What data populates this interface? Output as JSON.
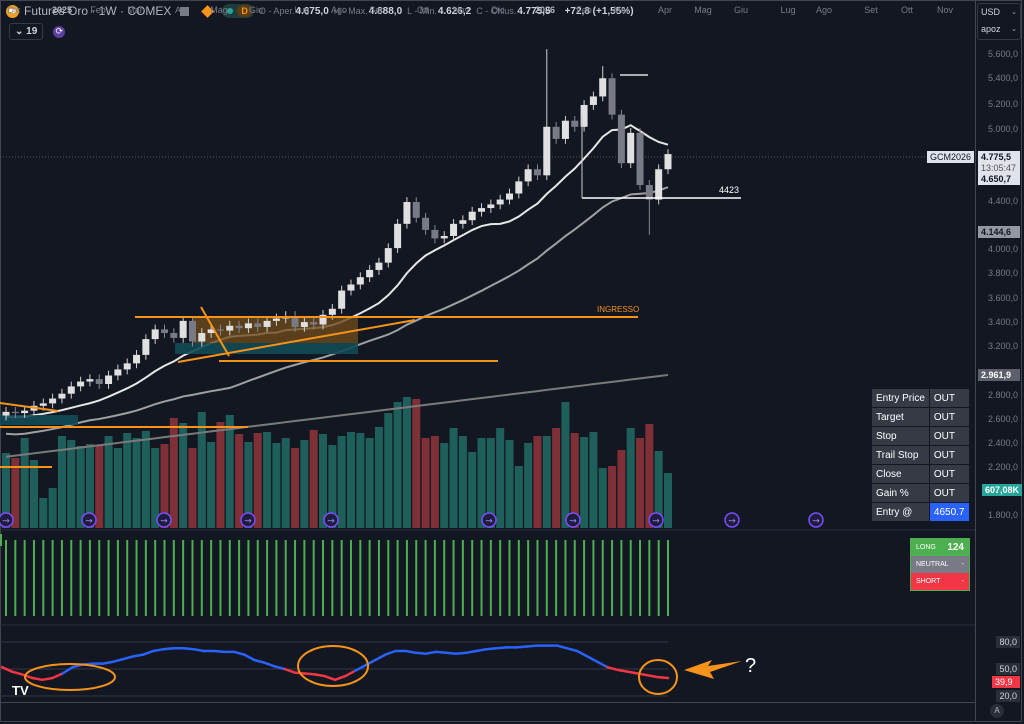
{
  "header": {
    "symbol_title": "Futures Oro · 1W · COMEX",
    "market_status": "D",
    "ohlc": [
      {
        "label": "O - Aper.",
        "value": "4.675,0"
      },
      {
        "label": "H - Max.",
        "value": "4.888,0"
      },
      {
        "label": "L - Min.",
        "value": "4.626,2"
      },
      {
        "label": "C - Chius.",
        "value": "4.775,5"
      }
    ],
    "change": "+72,8 (+1,55%)",
    "indicators_count": "19"
  },
  "currency_selector": {
    "currency": "USD",
    "unit": "apoz"
  },
  "price_axis": {
    "ticks": [
      "5.600,0",
      "5.400,0",
      "5.200,0",
      "5.000,0",
      "4.400,0",
      "4.000,0",
      "3.800,0",
      "3.600,0",
      "3.400,0",
      "3.200,0",
      "2.800,0",
      "2.600,0",
      "2.400,0",
      "2.200,0",
      "1.800,0"
    ],
    "symbol_label": "GCM2026",
    "last_price": "4.775,5",
    "countdown": "13:05:47",
    "ma_fast_value": "4.650,7",
    "ma_mid_value": "4.144,6",
    "ma_slow_value": "2.961,9",
    "volume_value": "607,08K"
  },
  "oscillator_axis": {
    "ticks": [
      "80,0",
      "50,0",
      "20,0"
    ],
    "current": "39,9"
  },
  "time_axis": {
    "labels": [
      "Dic",
      "2025",
      "Feb",
      "Mar",
      "Apr",
      "Mag",
      "Giu",
      "Lug",
      "Ago",
      "Set",
      "Ott",
      "Nov",
      "Dic",
      "2026",
      "Feb",
      "Mar",
      "Apr",
      "Mag",
      "Giu",
      "Lug",
      "Ago",
      "Set",
      "Ott",
      "Nov"
    ],
    "auto_button": "A"
  },
  "annotations": {
    "ingresso": "INGRESSO",
    "level_4423": "4423",
    "question": "?"
  },
  "strategy_table": [
    {
      "label": "Entry Price",
      "value": "OUT"
    },
    {
      "label": "Target",
      "value": "OUT"
    },
    {
      "label": "Stop",
      "value": "OUT"
    },
    {
      "label": "Trail Stop",
      "value": "OUT"
    },
    {
      "label": "Close",
      "value": "OUT"
    },
    {
      "label": "Gain %",
      "value": "OUT"
    },
    {
      "label": "Entry @",
      "value": "4650.7"
    }
  ],
  "signal_box": {
    "long_label": "LONG",
    "long_value": "124",
    "neutral_label": "NEUTRAL",
    "neutral_value": "-",
    "short_label": "SHORT",
    "short_value": "-"
  },
  "colors": {
    "background": "#131722",
    "bull_candle": "#e0e0e0",
    "bear_candle": "#787b86",
    "volume_up": "#1f5f5b",
    "volume_down": "#7f3037",
    "annotation": "#f7931a",
    "osc_up": "#2962ff",
    "osc_down": "#f23645",
    "signal_bar": "#4caf50",
    "entry_highlight": "#2962ff"
  },
  "chart_data": [
    {
      "type": "candlestick",
      "title": "Futures Oro · 1W · COMEX",
      "x_range": [
        "Dic 2024",
        "Apr 2026"
      ],
      "ylim": [
        1700,
        5700
      ],
      "ylabel": "USD / apoz",
      "weekly_closes_approx": [
        2650,
        2640,
        2660,
        2700,
        2720,
        2760,
        2800,
        2860,
        2900,
        2920,
        2880,
        2950,
        3000,
        3050,
        3120,
        3250,
        3330,
        3300,
        3260,
        3400,
        3230,
        3300,
        3330,
        3320,
        3360,
        3340,
        3380,
        3350,
        3400,
        3420,
        3440,
        3350,
        3390,
        3370,
        3450,
        3500,
        3650,
        3700,
        3760,
        3820,
        3880,
        4000,
        4200,
        4380,
        4250,
        4150,
        4080,
        4100,
        4200,
        4230,
        4300,
        4330,
        4360,
        4400,
        4450,
        4550,
        4650,
        4600,
        5000,
        4900,
        5050,
        5000,
        5180,
        5250,
        5400,
        5100,
        4700,
        4950,
        4520,
        4400,
        4650,
        4775
      ],
      "last": {
        "open": 4675.0,
        "high": 4888.0,
        "low": 4626.2,
        "close": 4775.5,
        "change": 72.8,
        "change_pct": 1.55
      },
      "moving_averages": [
        {
          "name": "MA fast (white)",
          "last": 4650.7
        },
        {
          "name": "MA mid (gray)",
          "last": 4144.6
        },
        {
          "name": "MA slow (gray)",
          "last": 2961.9
        }
      ],
      "levels": [
        {
          "label": "INGRESSO",
          "value": 3450
        },
        {
          "label": "4423",
          "value": 4423
        }
      ]
    },
    {
      "type": "bar",
      "title": "Volume",
      "last": "607,08K",
      "series_direction_note": "teal=up, red=down"
    },
    {
      "type": "line",
      "title": "Oscillator",
      "ylim": [
        0,
        100
      ],
      "levels": [
        80,
        50,
        20
      ],
      "last": 39.9
    }
  ]
}
